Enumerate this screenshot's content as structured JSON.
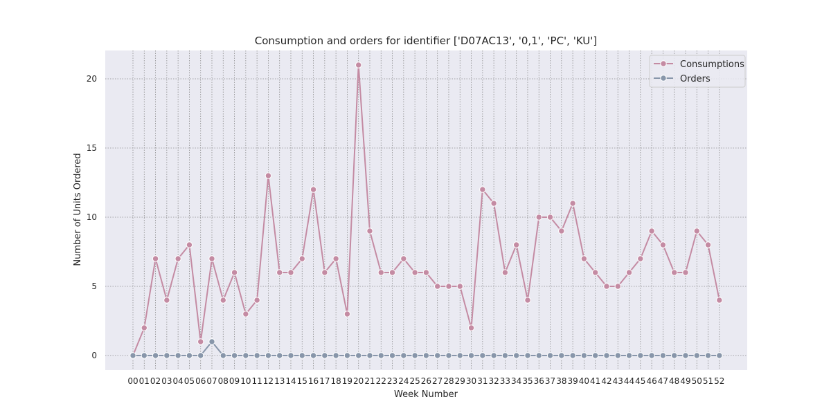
{
  "chart_data": {
    "type": "line",
    "title": "Consumption and orders for identifier ['D07AC13', '0,1', 'PC', 'KU']",
    "xlabel": "Week Number",
    "ylabel": "Number of Units Ordered",
    "categories": [
      "00",
      "01",
      "02",
      "03",
      "04",
      "05",
      "06",
      "07",
      "08",
      "09",
      "10",
      "11",
      "12",
      "13",
      "14",
      "15",
      "16",
      "17",
      "18",
      "19",
      "20",
      "21",
      "22",
      "23",
      "24",
      "25",
      "26",
      "27",
      "28",
      "29",
      "30",
      "31",
      "32",
      "33",
      "34",
      "35",
      "36",
      "37",
      "38",
      "39",
      "40",
      "41",
      "42",
      "43",
      "44",
      "45",
      "46",
      "47",
      "48",
      "49",
      "50",
      "51",
      "52"
    ],
    "series": [
      {
        "name": "Consumptions",
        "color": "#c48ba3",
        "values": [
          0,
          2,
          7,
          4,
          7,
          8,
          1,
          7,
          4,
          6,
          3,
          4,
          13,
          6,
          6,
          7,
          12,
          6,
          7,
          3,
          21,
          9,
          6,
          6,
          7,
          6,
          6,
          5,
          5,
          5,
          2,
          12,
          11,
          6,
          8,
          4,
          10,
          10,
          9,
          11,
          7,
          6,
          5,
          5,
          6,
          7,
          9,
          8,
          6,
          6,
          9,
          8,
          4
        ]
      },
      {
        "name": "Orders",
        "color": "#8896aa",
        "values": [
          0,
          0,
          0,
          0,
          0,
          0,
          0,
          1,
          0,
          0,
          0,
          0,
          0,
          0,
          0,
          0,
          0,
          0,
          0,
          0,
          0,
          0,
          0,
          0,
          0,
          0,
          0,
          0,
          0,
          0,
          0,
          0,
          0,
          0,
          0,
          0,
          0,
          0,
          0,
          0,
          0,
          0,
          0,
          0,
          0,
          0,
          0,
          0,
          0,
          0,
          0,
          0,
          0
        ]
      }
    ],
    "yticks": [
      0,
      5,
      10,
      15,
      20
    ],
    "ylim": [
      -1.05,
      22.05
    ],
    "grid": true,
    "legend_position": "top-right",
    "background_color": "#eaeaf2"
  }
}
